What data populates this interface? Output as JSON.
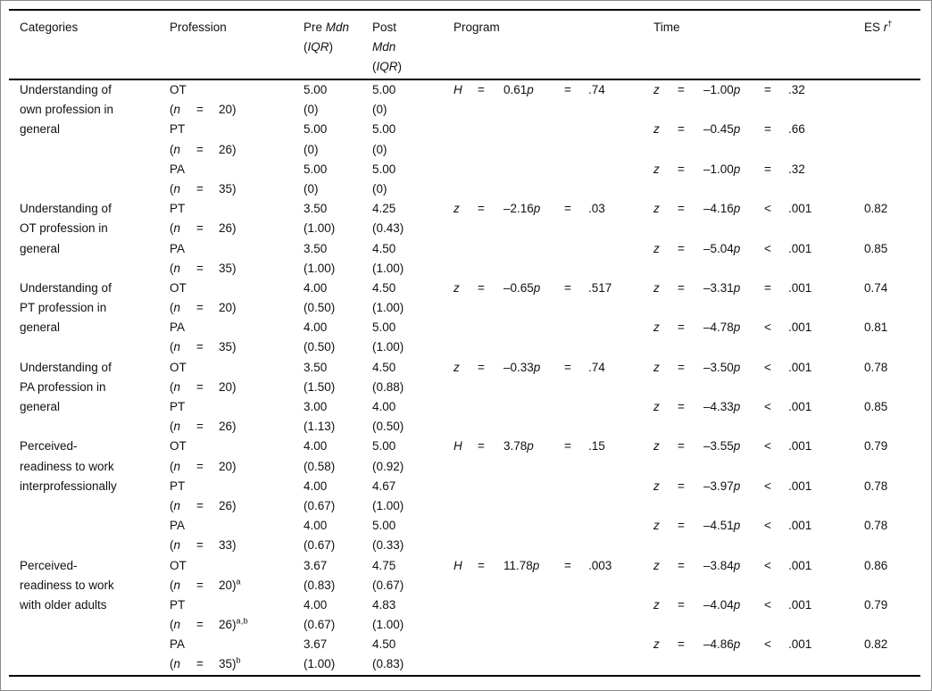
{
  "page": {
    "background": "#ffffff",
    "text_color": "#111111",
    "rule_color": "#000000",
    "frame_color": "#8a8a8a"
  },
  "table": {
    "header": {
      "categories": "Categories",
      "profession": "Profession",
      "pre_lines": [
        [
          {
            "t": "Pre "
          },
          {
            "t": "Mdn",
            "i": true
          }
        ],
        [
          {
            "t": "("
          },
          {
            "t": "IQR",
            "i": true
          },
          {
            "t": ")"
          }
        ]
      ],
      "post_lines": [
        [
          {
            "t": "Post"
          }
        ],
        [
          {
            "t": "Mdn",
            "i": true
          }
        ],
        [
          {
            "t": "("
          },
          {
            "t": "IQR",
            "i": true
          },
          {
            "t": ")"
          }
        ]
      ],
      "program": "Program",
      "time": "Time",
      "es_lines": [
        [
          {
            "t": "ES "
          },
          {
            "t": "r",
            "i": true
          },
          {
            "t": "†",
            "sup": true
          }
        ]
      ]
    },
    "groups": [
      {
        "category_lines": [
          "Understanding of",
          "own profession in",
          "general"
        ],
        "program": {
          "sym": "H",
          "eq": "=",
          "val": "0.61",
          "p": "p",
          "rel": "=",
          "pval": ".74"
        },
        "rows": [
          {
            "name": "OT",
            "n": {
              "open": "(",
              "var": "n",
              "eq": "=",
              "close": "20)",
              "sup": ""
            },
            "pre": "5.00",
            "pre_iqr": "(0)",
            "post": "5.00",
            "post_iqr": "(0)",
            "time": {
              "sym": "z",
              "eq": "=",
              "val": "–1.00",
              "p": "p",
              "rel": "=",
              "pval": ".32"
            },
            "es": ""
          },
          {
            "name": "PT",
            "n": {
              "open": "(",
              "var": "n",
              "eq": "=",
              "close": "26)",
              "sup": ""
            },
            "pre": "5.00",
            "pre_iqr": "(0)",
            "post": "5.00",
            "post_iqr": "(0)",
            "time": {
              "sym": "z",
              "eq": "=",
              "val": "–0.45",
              "p": "p",
              "rel": "=",
              "pval": ".66"
            },
            "es": ""
          },
          {
            "name": "PA",
            "n": {
              "open": "(",
              "var": "n",
              "eq": "=",
              "close": "35)",
              "sup": ""
            },
            "pre": "5.00",
            "pre_iqr": "(0)",
            "post": "5.00",
            "post_iqr": "(0)",
            "time": {
              "sym": "z",
              "eq": "=",
              "val": "–1.00",
              "p": "p",
              "rel": "=",
              "pval": ".32"
            },
            "es": ""
          }
        ]
      },
      {
        "category_lines": [
          "Understanding of",
          "OT profession in",
          "general"
        ],
        "program": {
          "sym": "z",
          "eq": "=",
          "val": "–2.16",
          "p": "p",
          "rel": "=",
          "pval": ".03"
        },
        "rows": [
          {
            "name": "PT",
            "n": {
              "open": "(",
              "var": "n",
              "eq": "=",
              "close": "26)",
              "sup": ""
            },
            "pre": "3.50",
            "pre_iqr": "(1.00)",
            "post": "4.25",
            "post_iqr": "(0.43)",
            "time": {
              "sym": "z",
              "eq": "=",
              "val": "–4.16",
              "p": "p",
              "rel": "<",
              "pval": ".001"
            },
            "es": "0.82"
          },
          {
            "name": "PA",
            "n": {
              "open": "(",
              "var": "n",
              "eq": "=",
              "close": "35)",
              "sup": ""
            },
            "pre": "3.50",
            "pre_iqr": "(1.00)",
            "post": "4.50",
            "post_iqr": "(1.00)",
            "time": {
              "sym": "z",
              "eq": "=",
              "val": "–5.04",
              "p": "p",
              "rel": "<",
              "pval": ".001"
            },
            "es": "0.85"
          }
        ]
      },
      {
        "category_lines": [
          "Understanding of",
          "PT profession in",
          "general"
        ],
        "program": {
          "sym": "z",
          "eq": "=",
          "val": "–0.65",
          "p": "p",
          "rel": "=",
          "pval": ".517"
        },
        "rows": [
          {
            "name": "OT",
            "n": {
              "open": "(",
              "var": "n",
              "eq": "=",
              "close": "20)",
              "sup": ""
            },
            "pre": "4.00",
            "pre_iqr": "(0.50)",
            "post": "4.50",
            "post_iqr": "(1.00)",
            "time": {
              "sym": "z",
              "eq": "=",
              "val": "–3.31",
              "p": "p",
              "rel": "=",
              "pval": ".001"
            },
            "es": "0.74"
          },
          {
            "name": "PA",
            "n": {
              "open": "(",
              "var": "n",
              "eq": "=",
              "close": "35)",
              "sup": ""
            },
            "pre": "4.00",
            "pre_iqr": "(0.50)",
            "post": "5.00",
            "post_iqr": "(1.00)",
            "time": {
              "sym": "z",
              "eq": "=",
              "val": "–4.78",
              "p": "p",
              "rel": "<",
              "pval": ".001"
            },
            "es": "0.81"
          }
        ]
      },
      {
        "category_lines": [
          "Understanding of",
          "PA profession in",
          "general"
        ],
        "program": {
          "sym": "z",
          "eq": "=",
          "val": "–0.33",
          "p": "p",
          "rel": "=",
          "pval": ".74"
        },
        "rows": [
          {
            "name": "OT",
            "n": {
              "open": "(",
              "var": "n",
              "eq": "=",
              "close": "20)",
              "sup": ""
            },
            "pre": "3.50",
            "pre_iqr": "(1.50)",
            "post": "4.50",
            "post_iqr": "(0.88)",
            "time": {
              "sym": "z",
              "eq": "=",
              "val": "–3.50",
              "p": "p",
              "rel": "<",
              "pval": ".001"
            },
            "es": "0.78"
          },
          {
            "name": "PT",
            "n": {
              "open": "(",
              "var": "n",
              "eq": "=",
              "close": "26)",
              "sup": ""
            },
            "pre": "3.00",
            "pre_iqr": "(1.13)",
            "post": "4.00",
            "post_iqr": "(0.50)",
            "time": {
              "sym": "z",
              "eq": "=",
              "val": "–4.33",
              "p": "p",
              "rel": "<",
              "pval": ".001"
            },
            "es": "0.85"
          }
        ]
      },
      {
        "category_lines": [
          "Perceived-",
          "readiness to work",
          "interprofessionally"
        ],
        "program": {
          "sym": "H",
          "eq": "=",
          "val": "3.78",
          "p": "p",
          "rel": "=",
          "pval": ".15"
        },
        "rows": [
          {
            "name": "OT",
            "n": {
              "open": "(",
              "var": "n",
              "eq": "=",
              "close": "20)",
              "sup": ""
            },
            "pre": "4.00",
            "pre_iqr": "(0.58)",
            "post": "5.00",
            "post_iqr": "(0.92)",
            "time": {
              "sym": "z",
              "eq": "=",
              "val": "–3.55",
              "p": "p",
              "rel": "<",
              "pval": ".001"
            },
            "es": "0.79"
          },
          {
            "name": "PT",
            "n": {
              "open": "(",
              "var": "n",
              "eq": "=",
              "close": "26)",
              "sup": ""
            },
            "pre": "4.00",
            "pre_iqr": "(0.67)",
            "post": "4.67",
            "post_iqr": "(1.00)",
            "time": {
              "sym": "z",
              "eq": "=",
              "val": "–3.97",
              "p": "p",
              "rel": "<",
              "pval": ".001"
            },
            "es": "0.78"
          },
          {
            "name": "PA",
            "n": {
              "open": "(",
              "var": "n",
              "eq": "=",
              "close": "33)",
              "sup": ""
            },
            "pre": "4.00",
            "pre_iqr": "(0.67)",
            "post": "5.00",
            "post_iqr": "(0.33)",
            "time": {
              "sym": "z",
              "eq": "=",
              "val": "–4.51",
              "p": "p",
              "rel": "<",
              "pval": ".001"
            },
            "es": "0.78"
          }
        ]
      },
      {
        "category_lines": [
          "Perceived-",
          "readiness to work",
          "with older adults"
        ],
        "program": {
          "sym": "H",
          "eq": "=",
          "val": "11.78",
          "p": "p",
          "rel": "=",
          "pval": ".003"
        },
        "rows": [
          {
            "name": "OT",
            "n": {
              "open": "(",
              "var": "n",
              "eq": "=",
              "close": "20)",
              "sup": "a"
            },
            "pre": "3.67",
            "pre_iqr": "(0.83)",
            "post": "4.75",
            "post_iqr": "(0.67)",
            "time": {
              "sym": "z",
              "eq": "=",
              "val": "–3.84",
              "p": "p",
              "rel": "<",
              "pval": ".001"
            },
            "es": "0.86"
          },
          {
            "name": "PT",
            "n": {
              "open": "(",
              "var": "n",
              "eq": "=",
              "close": "26)",
              "sup": "a,b"
            },
            "pre": "4.00",
            "pre_iqr": "(0.67)",
            "post": "4.83",
            "post_iqr": "(1.00)",
            "time": {
              "sym": "z",
              "eq": "=",
              "val": "–4.04",
              "p": "p",
              "rel": "<",
              "pval": ".001"
            },
            "es": "0.79"
          },
          {
            "name": "PA",
            "n": {
              "open": "(",
              "var": "n",
              "eq": "=",
              "close": "35)",
              "sup": "b"
            },
            "pre": "3.67",
            "pre_iqr": "(1.00)",
            "post": "4.50",
            "post_iqr": "(0.83)",
            "time": {
              "sym": "z",
              "eq": "=",
              "val": "–4.86",
              "p": "p",
              "rel": "<",
              "pval": ".001"
            },
            "es": "0.82"
          }
        ]
      }
    ]
  }
}
